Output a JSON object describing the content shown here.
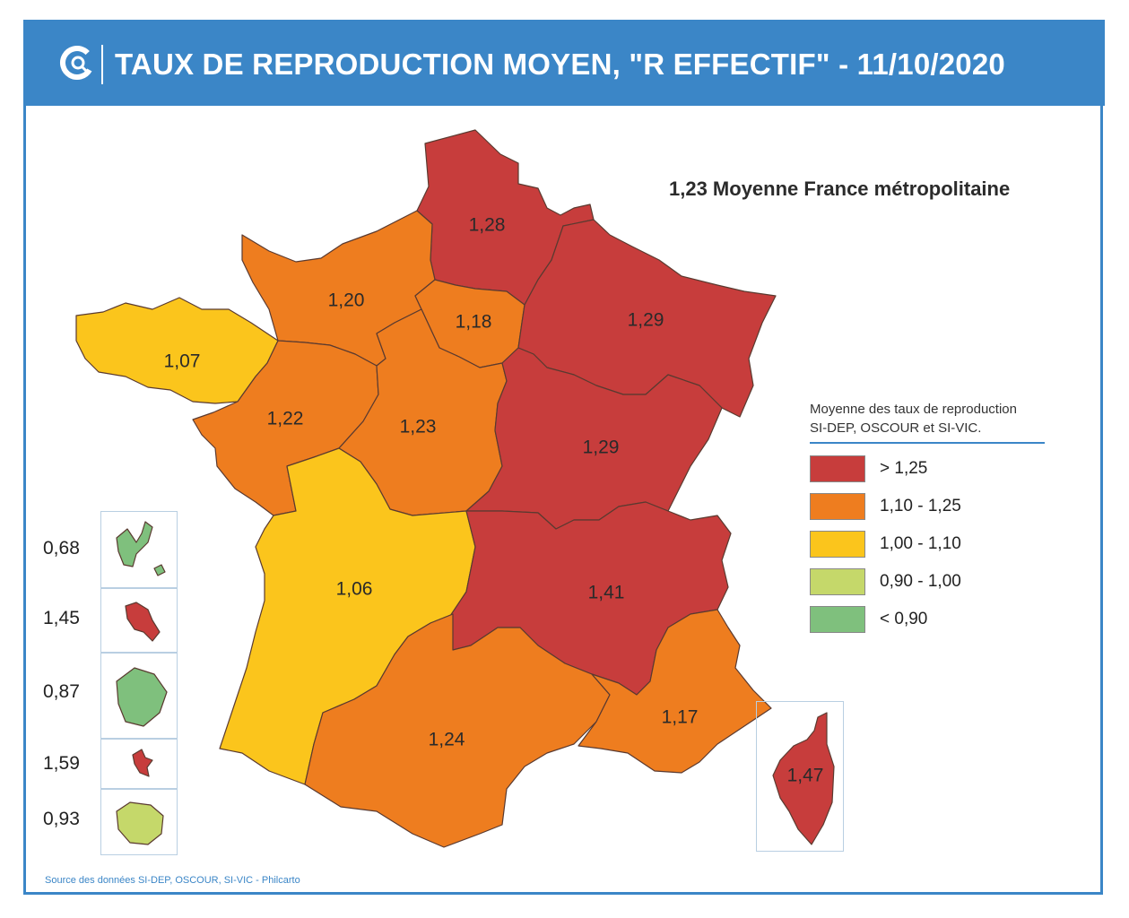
{
  "header": {
    "title": "TAUX DE REPRODUCTION MOYEN, \"R EFFECTIF\" - 11/10/2020",
    "color": "#3b86c7"
  },
  "average": {
    "text": "1,23 Moyenne France métropolitaine"
  },
  "legend": {
    "title_line1": "Moyenne des taux de reproduction",
    "title_line2": "SI-DEP, OSCOUR et SI-VIC.",
    "items": [
      {
        "label": "> 1,25",
        "color": "#c73d3c"
      },
      {
        "label": "1,10 - 1,25",
        "color": "#ee7d1f"
      },
      {
        "label": "1,00 - 1,10",
        "color": "#fbc51c"
      },
      {
        "label": "0,90 - 1,00",
        "color": "#c5d86a"
      },
      {
        "label": "< 0,90",
        "color": "#7fc07d"
      }
    ]
  },
  "regions": [
    {
      "value": "1,28",
      "color": "#c73d3c"
    },
    {
      "value": "1,20",
      "color": "#ee7d1f"
    },
    {
      "value": "1,18",
      "color": "#ee7d1f"
    },
    {
      "value": "1,29",
      "color": "#c73d3c"
    },
    {
      "value": "1,07",
      "color": "#fbc51c"
    },
    {
      "value": "1,22",
      "color": "#ee7d1f"
    },
    {
      "value": "1,23",
      "color": "#ee7d1f"
    },
    {
      "value": "1,29",
      "color": "#c73d3c"
    },
    {
      "value": "1,06",
      "color": "#fbc51c"
    },
    {
      "value": "1,41",
      "color": "#c73d3c"
    },
    {
      "value": "1,24",
      "color": "#ee7d1f"
    },
    {
      "value": "1,17",
      "color": "#ee7d1f"
    },
    {
      "value": "1,47",
      "color": "#c73d3c"
    }
  ],
  "overseas": [
    {
      "value": "0,68",
      "color": "#7fc07d"
    },
    {
      "value": "1,45",
      "color": "#c73d3c"
    },
    {
      "value": "0,87",
      "color": "#7fc07d"
    },
    {
      "value": "1,59",
      "color": "#c73d3c"
    },
    {
      "value": "0,93",
      "color": "#c5d86a"
    }
  ],
  "source": "Source des données SI-DEP, OSCOUR, SI-VIC - Philcarto"
}
